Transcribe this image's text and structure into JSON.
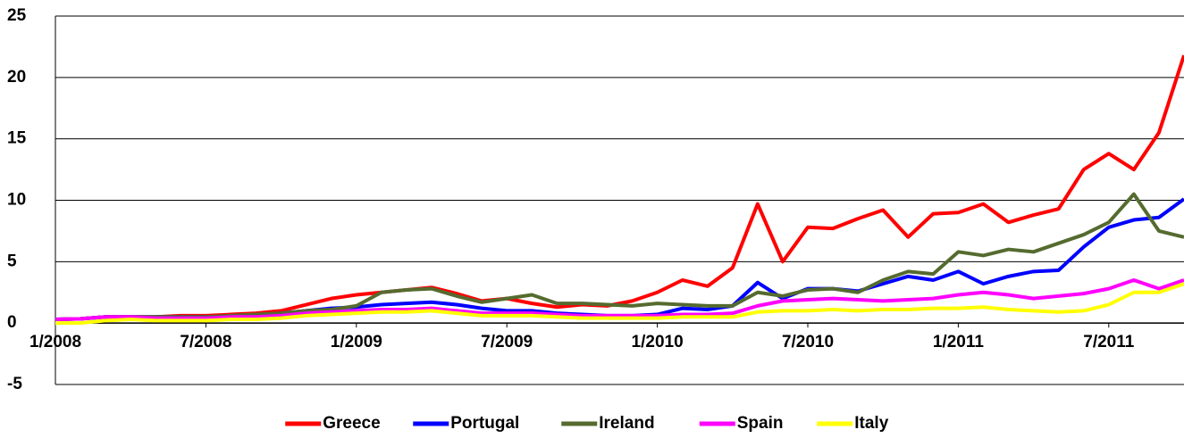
{
  "chart_data": {
    "type": "line",
    "x": [
      "2008-01",
      "2008-02",
      "2008-03",
      "2008-04",
      "2008-05",
      "2008-06",
      "2008-07",
      "2008-08",
      "2008-09",
      "2008-10",
      "2008-11",
      "2008-12",
      "2009-01",
      "2009-02",
      "2009-03",
      "2009-04",
      "2009-05",
      "2009-06",
      "2009-07",
      "2009-08",
      "2009-09",
      "2009-10",
      "2009-11",
      "2009-12",
      "2010-01",
      "2010-02",
      "2010-03",
      "2010-04",
      "2010-05",
      "2010-06",
      "2010-07",
      "2010-08",
      "2010-09",
      "2010-10",
      "2010-11",
      "2010-12",
      "2011-01",
      "2011-02",
      "2011-03",
      "2011-04",
      "2011-05",
      "2011-06",
      "2011-07",
      "2011-08",
      "2011-09",
      "2011-10"
    ],
    "series": [
      {
        "name": "Greece",
        "color": "#ff0000",
        "values": [
          0.3,
          0.35,
          0.5,
          0.5,
          0.5,
          0.6,
          0.6,
          0.7,
          0.8,
          1.0,
          1.5,
          2.0,
          2.3,
          2.5,
          2.7,
          2.9,
          2.4,
          1.8,
          2.0,
          1.6,
          1.3,
          1.5,
          1.4,
          1.8,
          2.5,
          3.5,
          3.0,
          4.5,
          9.7,
          5.0,
          7.8,
          7.7,
          8.5,
          9.2,
          7.0,
          8.9,
          9.0,
          9.7,
          8.2,
          8.8,
          9.3,
          12.5,
          13.8,
          12.5,
          15.5,
          21.8
        ]
      },
      {
        "name": "Portugal",
        "color": "#0000ff",
        "values": [
          0.3,
          0.35,
          0.5,
          0.5,
          0.5,
          0.5,
          0.5,
          0.5,
          0.6,
          0.8,
          1.0,
          1.2,
          1.3,
          1.5,
          1.6,
          1.7,
          1.5,
          1.2,
          1.0,
          1.0,
          0.8,
          0.7,
          0.6,
          0.6,
          0.7,
          1.2,
          1.1,
          1.4,
          3.3,
          2.0,
          2.8,
          2.8,
          2.6,
          3.2,
          3.8,
          3.5,
          4.2,
          3.2,
          3.8,
          4.2,
          4.3,
          6.2,
          7.8,
          8.4,
          8.6,
          10.1
        ]
      },
      {
        "name": "Ireland",
        "color": "#556b2f",
        "values": [
          0.3,
          0.35,
          0.5,
          0.5,
          0.5,
          0.5,
          0.5,
          0.6,
          0.7,
          0.8,
          1.0,
          1.1,
          1.4,
          2.5,
          2.7,
          2.8,
          2.2,
          1.7,
          2.0,
          2.3,
          1.6,
          1.6,
          1.5,
          1.4,
          1.6,
          1.5,
          1.4,
          1.4,
          2.5,
          2.2,
          2.7,
          2.8,
          2.5,
          3.5,
          4.2,
          4.0,
          5.8,
          5.5,
          6.0,
          5.8,
          6.5,
          7.2,
          8.2,
          10.5,
          7.5,
          7.0
        ]
      },
      {
        "name": "Spain",
        "color": "#ff00ff",
        "values": [
          0.3,
          0.35,
          0.5,
          0.5,
          0.4,
          0.4,
          0.4,
          0.5,
          0.5,
          0.6,
          0.8,
          0.9,
          1.0,
          1.1,
          1.1,
          1.2,
          1.0,
          0.8,
          0.8,
          0.8,
          0.7,
          0.6,
          0.6,
          0.6,
          0.6,
          0.7,
          0.7,
          0.8,
          1.4,
          1.8,
          1.9,
          2.0,
          1.9,
          1.8,
          1.9,
          2.0,
          2.3,
          2.5,
          2.3,
          2.0,
          2.2,
          2.4,
          2.8,
          3.5,
          2.8,
          3.5
        ]
      },
      {
        "name": "Italy",
        "color": "#ffff00",
        "values": [
          0.0,
          0.0,
          0.2,
          0.3,
          0.2,
          0.2,
          0.2,
          0.3,
          0.3,
          0.4,
          0.6,
          0.7,
          0.8,
          0.9,
          0.9,
          1.0,
          0.8,
          0.6,
          0.6,
          0.6,
          0.5,
          0.4,
          0.4,
          0.4,
          0.4,
          0.5,
          0.5,
          0.5,
          0.9,
          1.0,
          1.0,
          1.1,
          1.0,
          1.1,
          1.1,
          1.2,
          1.2,
          1.3,
          1.1,
          1.0,
          0.9,
          1.0,
          1.5,
          2.5,
          2.5,
          3.2
        ]
      }
    ],
    "xlim": [
      "2008-01",
      "2011-10"
    ],
    "xticks": [
      {
        "value": "2008-01",
        "label": "1/2008"
      },
      {
        "value": "2008-07",
        "label": "7/2008"
      },
      {
        "value": "2009-01",
        "label": "1/2009"
      },
      {
        "value": "2009-07",
        "label": "7/2009"
      },
      {
        "value": "2010-01",
        "label": "1/2010"
      },
      {
        "value": "2010-07",
        "label": "7/2010"
      },
      {
        "value": "2011-01",
        "label": "1/2011"
      },
      {
        "value": "2011-07",
        "label": "7/2011"
      }
    ],
    "ylim": [
      -5,
      25
    ],
    "yticks": [
      -5,
      0,
      5,
      10,
      15,
      20,
      25
    ],
    "grid": true,
    "legend": "bottom"
  }
}
